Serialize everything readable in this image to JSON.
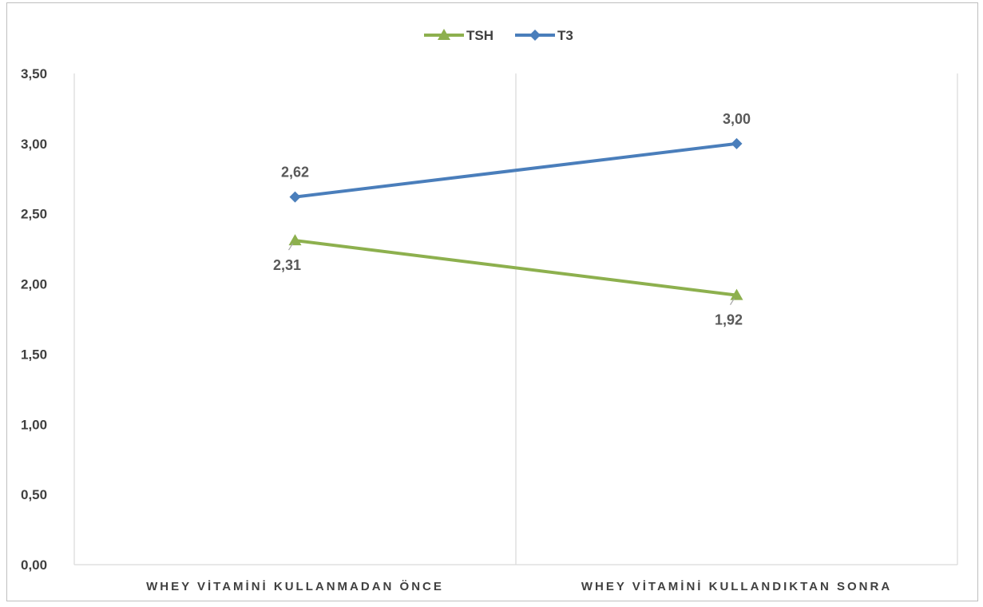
{
  "chart_data": {
    "type": "line",
    "categories": [
      "WHEY VİTAMİNİ KULLANMADAN ÖNCE",
      "WHEY VİTAMİNİ KULLANDIKTAN SONRA"
    ],
    "series": [
      {
        "name": "TSH",
        "values": [
          2.31,
          1.92
        ],
        "labels": [
          "2,31",
          "1,92"
        ],
        "color": "#8db04e",
        "marker": "triangle"
      },
      {
        "name": "T3",
        "values": [
          2.62,
          3.0
        ],
        "labels": [
          "2,62",
          "3,00"
        ],
        "color": "#4a7ebb",
        "marker": "diamond"
      }
    ],
    "ylim": [
      0,
      3.5
    ],
    "yticks": [
      "0,00",
      "0,50",
      "1,00",
      "1,50",
      "2,00",
      "2,50",
      "3,00",
      "3,50"
    ],
    "grid": "vertical category separators",
    "legend": "top-center",
    "title": "",
    "xlabel": "",
    "ylabel": ""
  }
}
